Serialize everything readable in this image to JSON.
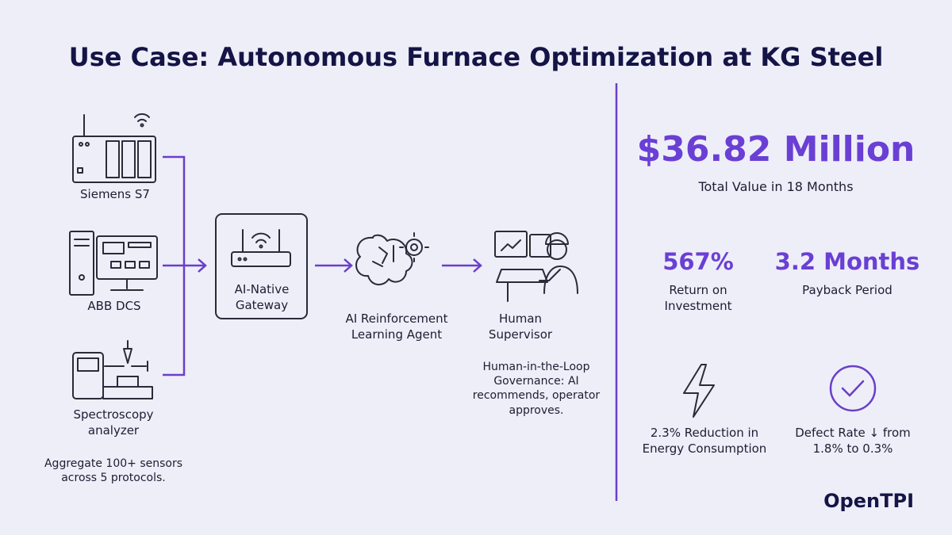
{
  "header": {
    "title": "Use Case: Autonomous Furnace Optimization at KG Steel"
  },
  "sources": {
    "items": [
      "Siemens S7",
      "ABB DCS",
      "Spectroscopy analyzer"
    ],
    "note": "Aggregate 100+ sensors across 5 protocols."
  },
  "pipeline": {
    "gateway": "AI-Native Gateway",
    "agent": "AI Reinforcement Learning Agent",
    "supervisor": "Human Supervisor",
    "governance": "Human-in-the-Loop Governance: AI recommends, operator approves."
  },
  "results": {
    "headline": {
      "value": "$36.82 Million",
      "label": "Total Value in 18 Months"
    },
    "metrics": [
      {
        "value": "567%",
        "label": "Return on Investment"
      },
      {
        "value": "3.2 Months",
        "label": "Payback Period"
      }
    ],
    "impacts": [
      "2.3% Reduction in Energy Consumption",
      "Defect Rate ↓ from 1.8% to 0.3%"
    ]
  },
  "brand": "OpenTPI"
}
